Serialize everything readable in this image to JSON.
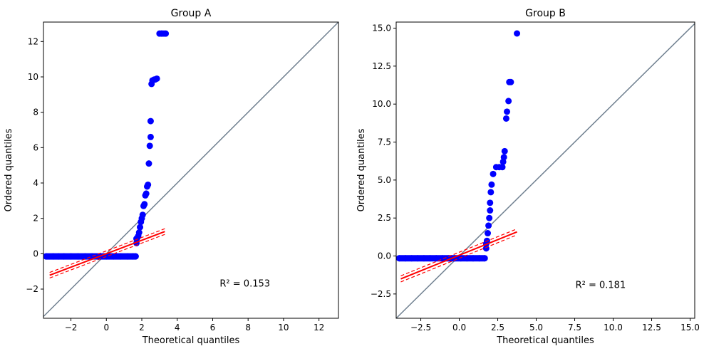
{
  "chart_data": [
    {
      "type": "scatter",
      "title": "Group A",
      "xlabel": "Theoretical quantiles",
      "ylabel": "Ordered quantiles",
      "xlim": [
        -3.55,
        13.1
      ],
      "ylim": [
        -3.65,
        13.1
      ],
      "xticks": [
        -2,
        0,
        2,
        4,
        6,
        8,
        10,
        12
      ],
      "yticks": [
        -2,
        0,
        2,
        4,
        6,
        8,
        10,
        12
      ],
      "tick_labels_x": [
        "−2",
        "0",
        "2",
        "4",
        "6",
        "8",
        "10",
        "12"
      ],
      "tick_labels_y": [
        "−2",
        "0",
        "2",
        "4",
        "6",
        "8",
        "10",
        "12"
      ],
      "annotation": {
        "text": "R² = 0.153",
        "x": 6.4,
        "y": -1.85
      },
      "reference_line": {
        "points": [
          [
            -3.55,
            -3.55
          ],
          [
            13.1,
            13.1
          ]
        ],
        "color": "#708090"
      },
      "fit_line": {
        "slope": 0.38,
        "intercept": 0.0,
        "x_range": [
          -3.2,
          3.3
        ],
        "ci_halfwidth": 0.16,
        "color": "#ff0000"
      },
      "series": [
        {
          "color": "#0000ff",
          "x": [
            -3.4,
            -3.0,
            -2.7,
            -2.4,
            -2.0,
            -1.6,
            -1.2,
            -0.8,
            -0.4,
            0.0,
            0.4,
            0.8,
            1.2,
            1.5,
            1.65,
            1.7,
            1.7,
            1.75,
            1.8,
            1.85,
            1.9,
            1.95,
            2.0,
            2.05,
            2.1,
            2.15,
            2.2,
            2.25,
            2.3,
            2.35,
            2.4,
            2.45,
            2.5,
            2.5,
            2.55,
            2.6,
            2.7,
            2.75,
            2.85,
            3.0,
            3.1,
            3.15,
            3.25,
            3.35
          ],
          "y": [
            -0.15,
            -0.15,
            -0.15,
            -0.15,
            -0.15,
            -0.15,
            -0.15,
            -0.15,
            -0.15,
            -0.15,
            -0.15,
            -0.15,
            -0.15,
            -0.15,
            -0.15,
            0.6,
            0.85,
            0.9,
            1.0,
            1.2,
            1.5,
            1.8,
            2.0,
            2.2,
            2.7,
            2.8,
            3.3,
            3.4,
            3.8,
            3.9,
            5.1,
            6.1,
            6.6,
            7.5,
            9.6,
            9.8,
            9.85,
            9.85,
            9.9,
            12.45,
            12.45,
            12.45,
            12.45,
            12.45
          ]
        }
      ]
    },
    {
      "type": "scatter",
      "title": "Group B",
      "xlabel": "Theoretical quantiles",
      "ylabel": "Ordered quantiles",
      "xlim": [
        -4.1,
        15.3
      ],
      "ylim": [
        -4.1,
        15.4
      ],
      "xticks": [
        -2.5,
        0.0,
        2.5,
        5.0,
        7.5,
        10.0,
        12.5,
        15.0
      ],
      "yticks": [
        -2.5,
        0.0,
        2.5,
        5.0,
        7.5,
        10.0,
        12.5,
        15.0
      ],
      "tick_labels_x": [
        "−2.5",
        "0.0",
        "2.5",
        "5.0",
        "7.5",
        "10.0",
        "12.5",
        "15.0"
      ],
      "tick_labels_y": [
        "−2.5",
        "0.0",
        "2.5",
        "5.0",
        "7.5",
        "10.0",
        "12.5",
        "15.0"
      ],
      "annotation": {
        "text": "R² = 0.181",
        "x": 7.55,
        "y": -2.1
      },
      "reference_line": {
        "points": [
          [
            -4.1,
            -4.1
          ],
          [
            15.3,
            15.3
          ]
        ],
        "color": "#708090"
      },
      "fit_line": {
        "slope": 0.41,
        "intercept": 0.05,
        "x_range": [
          -3.8,
          3.75
        ],
        "ci_halfwidth": 0.2,
        "color": "#ff0000"
      },
      "series": [
        {
          "color": "#0000ff",
          "x": [
            -3.9,
            -3.5,
            -3.1,
            -2.7,
            -2.3,
            -1.9,
            -1.5,
            -1.1,
            -0.7,
            -0.3,
            0.1,
            0.5,
            0.9,
            1.3,
            1.65,
            1.75,
            1.75,
            1.8,
            1.85,
            1.9,
            1.95,
            2.0,
            2.0,
            2.05,
            2.1,
            2.2,
            2.4,
            2.6,
            2.8,
            2.85,
            2.9,
            2.95,
            3.05,
            3.1,
            3.2,
            3.25,
            3.35,
            3.75
          ],
          "y": [
            -0.15,
            -0.15,
            -0.15,
            -0.15,
            -0.15,
            -0.15,
            -0.15,
            -0.15,
            -0.15,
            -0.15,
            -0.15,
            -0.15,
            -0.15,
            -0.15,
            -0.15,
            0.5,
            0.8,
            1.0,
            1.5,
            2.0,
            2.5,
            3.0,
            3.5,
            4.2,
            4.7,
            5.4,
            5.85,
            5.85,
            5.85,
            6.2,
            6.5,
            6.9,
            9.05,
            9.5,
            10.2,
            11.45,
            11.45,
            14.65
          ]
        }
      ]
    }
  ]
}
